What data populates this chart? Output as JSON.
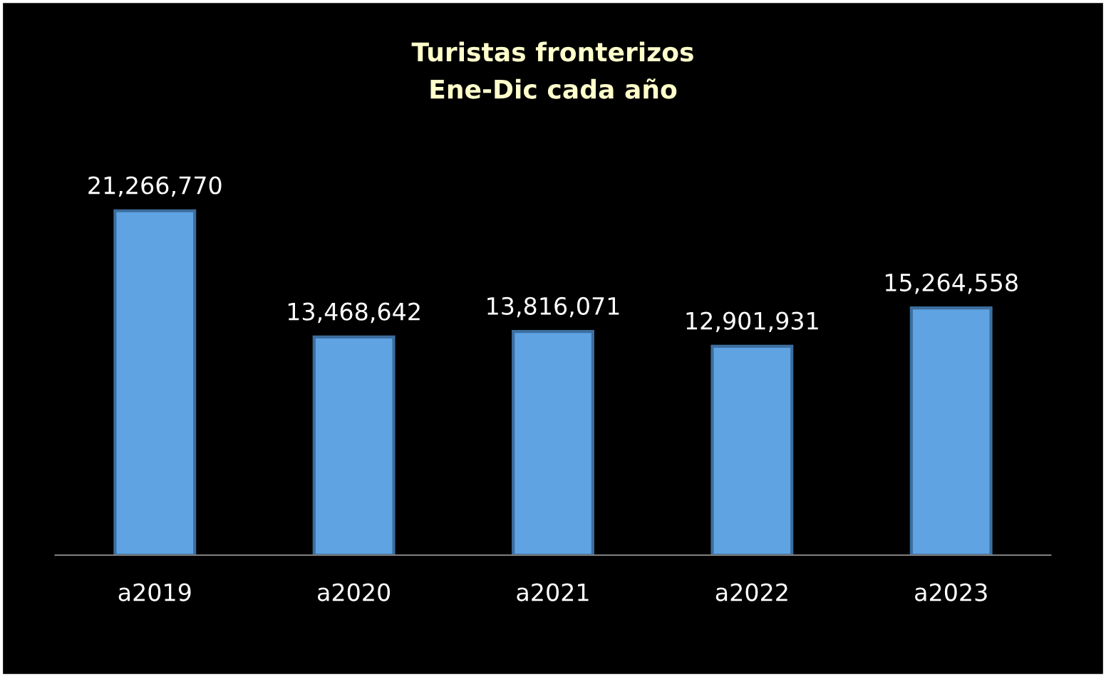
{
  "chart_data": {
    "type": "bar",
    "title": "Turistas fronterizos",
    "subtitle": "Ene-Dic cada año",
    "categories": [
      "a2019",
      "a2020",
      "a2021",
      "a2022",
      "a2023"
    ],
    "values": [
      21266770,
      13468642,
      13816071,
      12901931,
      15264558
    ],
    "value_labels": [
      "21,266,770",
      "13,468,642",
      "13,816,071",
      "12,901,931",
      "15,264,558"
    ],
    "color": "#5fa3e3"
  }
}
